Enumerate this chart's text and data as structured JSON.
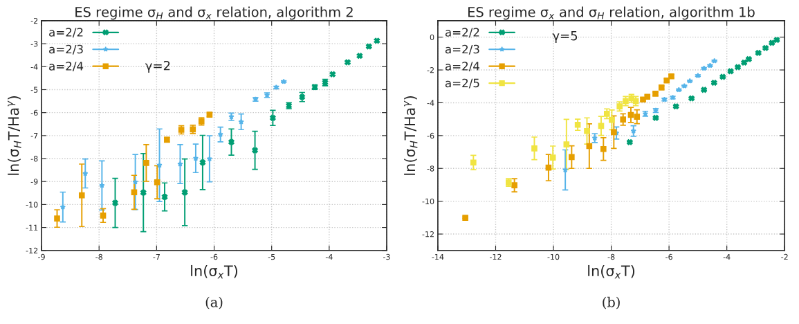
{
  "chart_data": [
    {
      "type": "scatter",
      "title": "ES regime σ$_{H}$ and σ$_{x}$ relation, algorithm 2",
      "xlabel": "ln(σ$_{x}$T)",
      "ylabel": "ln(σ$_{H}$T/Ha$^{γ}$)",
      "xlim": [
        -9,
        -3
      ],
      "ylim": [
        -12,
        -2
      ],
      "xticks": [
        -9,
        -8,
        -7,
        -6,
        -5,
        -4,
        -3
      ],
      "yticks": [
        -12,
        -11,
        -10,
        -9,
        -8,
        -7,
        -6,
        -5,
        -4,
        -3,
        -2
      ],
      "grid": true,
      "legend": "top left",
      "annotations": [
        "γ=2",
        "(a)"
      ],
      "series": [
        {
          "name": "a=2/2",
          "color": "#009e73",
          "marker": "cross",
          "x": [
            -7.72,
            -7.23,
            -6.86,
            -6.51,
            -6.2,
            -5.7,
            -5.29,
            -4.98,
            -4.7,
            -4.47,
            -4.25,
            -4.07,
            -3.94,
            -3.68,
            -3.47,
            -3.31,
            -3.17
          ],
          "values": [
            -9.93,
            -9.48,
            -9.67,
            -9.47,
            -8.17,
            -7.28,
            -7.64,
            -6.23,
            -5.7,
            -5.32,
            -4.89,
            -4.69,
            -4.33,
            -3.81,
            -3.53,
            -3.12,
            -2.87
          ],
          "errors": [
            1.07,
            1.7,
            0.61,
            1.45,
            1.18,
            0.57,
            0.83,
            0.33,
            0.13,
            0.2,
            0.1,
            0.14,
            0.05,
            0.05,
            0.05,
            0.05,
            0.05
          ]
        },
        {
          "name": "a=2/3",
          "color": "#56b4e9",
          "marker": "star",
          "x": [
            -8.63,
            -8.24,
            -7.95,
            -7.37,
            -6.95,
            -6.59,
            -6.32,
            -6.08,
            -5.89,
            -5.7,
            -5.53,
            -5.28,
            -5.08,
            -4.92,
            -4.79
          ],
          "values": [
            -10.11,
            -8.65,
            -9.17,
            -9.02,
            -8.29,
            -8.24,
            -7.99,
            -8.01,
            -6.95,
            -6.18,
            -6.4,
            -5.42,
            -5.24,
            -4.9,
            -4.65
          ],
          "errors": [
            0.65,
            0.63,
            1.07,
            1.2,
            1.58,
            0.85,
            0.62,
            1.0,
            0.32,
            0.16,
            0.34,
            0.08,
            0.1,
            0.05,
            0.04
          ]
        },
        {
          "name": "a=2/4",
          "color": "#e69f00",
          "marker": "square",
          "x": [
            -8.73,
            -8.3,
            -7.93,
            -7.39,
            -7.18,
            -6.99,
            -6.82,
            -6.57,
            -6.37,
            -6.22,
            -6.08
          ],
          "values": [
            -10.61,
            -9.6,
            -10.48,
            -9.47,
            -8.19,
            -9.03,
            -7.18,
            -6.75,
            -6.73,
            -6.38,
            -6.09
          ],
          "errors": [
            0.38,
            1.36,
            0.3,
            0.74,
            0.8,
            0.72,
            0.1,
            0.18,
            0.18,
            0.16,
            0.08
          ]
        }
      ]
    },
    {
      "type": "scatter",
      "title": "ES regime σ$_{x}$ and σ$_{H}$ relation, algorithm 1b",
      "xlabel": "ln(σ$_{x}$T)",
      "ylabel": "ln(σ$_{H}$T/Ha$^{γ}$)",
      "xlim": [
        -14,
        -2
      ],
      "ylim": [
        -13,
        1
      ],
      "xticks": [
        -14,
        -12,
        -10,
        -8,
        -6,
        -4,
        -2
      ],
      "yticks": [
        -12,
        -10,
        -8,
        -6,
        -4,
        -2,
        0
      ],
      "grid": true,
      "legend": "top left",
      "annotations": [
        "γ=5",
        "(b)"
      ],
      "series": [
        {
          "name": "a=2/2",
          "color": "#009e73",
          "marker": "cross",
          "x": [
            -7.36,
            -6.46,
            -5.76,
            -5.22,
            -4.79,
            -4.44,
            -4.14,
            -3.87,
            -3.62,
            -3.4,
            -3.24,
            -2.91,
            -2.66,
            -2.44,
            -2.27
          ],
          "values": [
            -6.4,
            -4.92,
            -4.22,
            -3.73,
            -3.21,
            -2.78,
            -2.42,
            -2.08,
            -1.83,
            -1.55,
            -1.34,
            -0.96,
            -0.66,
            -0.35,
            -0.17
          ],
          "errors": [
            0.05,
            0.05,
            0.05,
            0.05,
            0.05,
            0.05,
            0.05,
            0.05,
            0.05,
            0.05,
            0.05,
            0.05,
            0.05,
            0.05,
            0.05
          ]
        },
        {
          "name": "a=2/3",
          "color": "#56b4e9",
          "marker": "star",
          "x": [
            -9.59,
            -8.57,
            -7.82,
            -7.23,
            -6.82,
            -6.46,
            -6.16,
            -5.87,
            -5.66,
            -5.47,
            -5.28,
            -5.0,
            -4.79,
            -4.58,
            -4.43
          ],
          "values": [
            -8.09,
            -6.15,
            -5.84,
            -5.72,
            -4.67,
            -4.47,
            -3.8,
            -3.68,
            -3.21,
            -2.98,
            -2.67,
            -2.35,
            -1.9,
            -1.73,
            -1.45
          ],
          "errors": [
            1.22,
            0.27,
            0.37,
            0.32,
            0.15,
            0.12,
            0.08,
            0.08,
            0.05,
            0.05,
            0.05,
            0.05,
            0.05,
            0.05,
            0.05
          ]
        },
        {
          "name": "a=2/4",
          "color": "#e69f00",
          "marker": "square",
          "x": [
            -13.05,
            -11.35,
            -10.17,
            -9.37,
            -8.76,
            -8.27,
            -7.91,
            -7.59,
            -7.32,
            -7.11,
            -6.9,
            -6.75,
            -6.47,
            -6.26,
            -6.08,
            -5.92
          ],
          "values": [
            -11.01,
            -9.03,
            -7.95,
            -7.31,
            -6.64,
            -6.82,
            -5.79,
            -5.02,
            -4.74,
            -4.85,
            -3.8,
            -3.63,
            -3.45,
            -3.07,
            -2.64,
            -2.39
          ],
          "errors": [
            0.05,
            0.4,
            0.8,
            0.69,
            1.36,
            0.69,
            0.99,
            0.35,
            0.46,
            0.42,
            0.1,
            0.1,
            0.1,
            0.1,
            0.1,
            0.1
          ]
        },
        {
          "name": "a=2/5",
          "color": "#f0e442",
          "marker": "square",
          "x": [
            -12.77,
            -11.55,
            -10.66,
            -10.02,
            -9.55,
            -9.16,
            -8.84,
            -8.35,
            -8.15,
            -7.98,
            -7.71,
            -7.5,
            -7.3,
            -7.15
          ],
          "values": [
            -7.64,
            -8.86,
            -6.78,
            -7.34,
            -6.54,
            -5.34,
            -5.72,
            -5.41,
            -4.67,
            -5.04,
            -4.22,
            -3.9,
            -3.73,
            -3.9
          ],
          "errors": [
            0.44,
            0.23,
            0.69,
            0.7,
            1.53,
            0.34,
            0.8,
            0.58,
            0.3,
            0.6,
            0.28,
            0.28,
            0.24,
            0.28
          ]
        }
      ]
    }
  ]
}
